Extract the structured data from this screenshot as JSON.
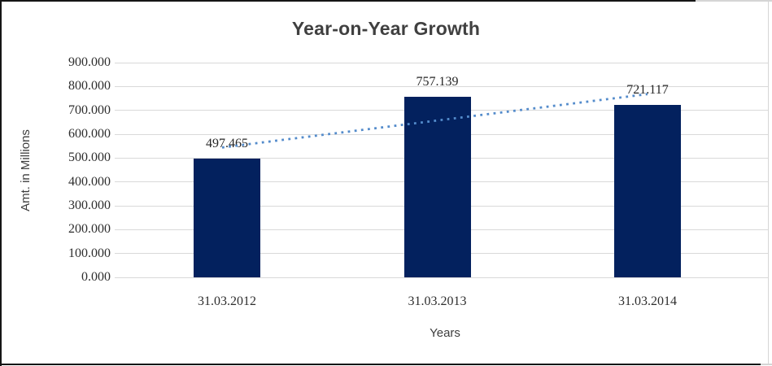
{
  "chart_data": {
    "type": "bar",
    "title": "Year-on-Year Growth",
    "xlabel": "Years",
    "ylabel": "Amt. in Millions",
    "categories": [
      "31.03.2012",
      "31.03.2013",
      "31.03.2014"
    ],
    "values": [
      497.465,
      757.139,
      721.117
    ],
    "value_labels": [
      "497.465",
      "757.139",
      "721.117"
    ],
    "y_ticks": [
      "0.000",
      "100.000",
      "200.000",
      "300.000",
      "400.000",
      "500.000",
      "600.000",
      "700.000",
      "800.000",
      "900.000"
    ],
    "ylim": [
      0,
      900
    ],
    "grid": "horizontal-only",
    "legend": "none",
    "bar_color": "#03215E",
    "gridline_color": "#d9d9d9",
    "trendline": {
      "type": "linear",
      "style": "dotted",
      "color": "#538BCB"
    }
  }
}
